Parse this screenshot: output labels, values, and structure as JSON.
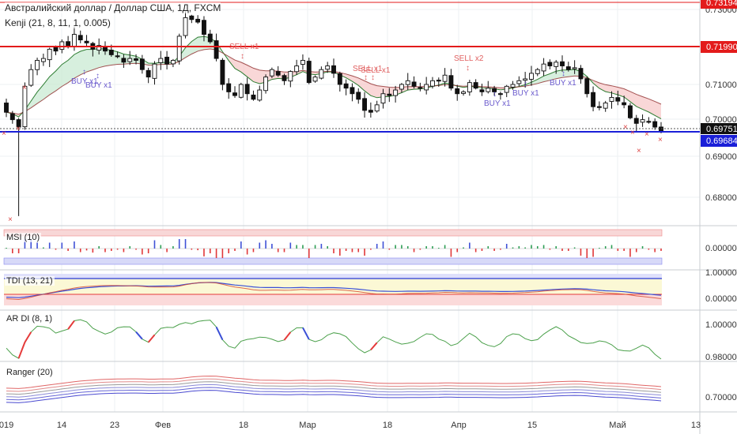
{
  "header": {
    "title": "Австралийский доллар / Доллар США, 1Д, FXCM",
    "indicator": "Kenji (21, 8, 11, 1, 0.005)"
  },
  "panels": {
    "msi": "MSI (10)",
    "tdi": "TDI (13, 21)",
    "ardi": "AR DI (8, 1)",
    "ranger": "Ranger (20)"
  },
  "price_axis": {
    "ticks": [
      "0.73000",
      "0.71000",
      "0.70000",
      "0.69000",
      "0.68000"
    ],
    "top_label": "0.73194",
    "resistance_label": "0.71990",
    "last_label": "0.69751",
    "support_label": "0.69684",
    "colors": {
      "resistance": "#e31b1b",
      "support": "#1a1fd8",
      "last": "#111111"
    }
  },
  "msi_axis": [
    "0.00000"
  ],
  "tdi_axis": [
    "1.00000",
    "0.00000"
  ],
  "ardi_axis": [
    "1.00000",
    "0.98000"
  ],
  "ranger_axis": [
    "0.70000"
  ],
  "time_axis": [
    {
      "label": "019",
      "x": 8
    },
    {
      "label": "14",
      "x": 78
    },
    {
      "label": "23",
      "x": 145
    },
    {
      "label": "Фев",
      "x": 206
    },
    {
      "label": "18",
      "x": 308
    },
    {
      "label": "Мар",
      "x": 389
    },
    {
      "label": "18",
      "x": 490
    },
    {
      "label": "Апр",
      "x": 580
    },
    {
      "label": "15",
      "x": 673
    },
    {
      "label": "Май",
      "x": 781
    },
    {
      "label": "13",
      "x": 880
    }
  ],
  "signals": [
    {
      "text": "BUY x1",
      "type": "buy"
    },
    {
      "text": "BUY x1",
      "type": "buy"
    },
    {
      "text": "SELL x1",
      "type": "sell"
    },
    {
      "text": "SELL x1",
      "type": "sell"
    },
    {
      "text": "SELL x1",
      "type": "sell"
    },
    {
      "text": "SELL x2",
      "type": "sell"
    },
    {
      "text": "BUY x1",
      "type": "buy"
    },
    {
      "text": "BUY x1",
      "type": "buy"
    },
    {
      "text": "BUY x1",
      "type": "buy"
    }
  ],
  "chart_data": {
    "type": "candlestick",
    "symbol": "AUD/USD",
    "closes": [
      0.7025,
      0.7005,
      0.6985,
      0.7095,
      0.714,
      0.7165,
      0.717,
      0.7195,
      0.719,
      0.7215,
      0.7205,
      0.7235,
      0.722,
      0.7212,
      0.7195,
      0.7205,
      0.719,
      0.718,
      0.7175,
      0.716,
      0.717,
      0.7165,
      0.714,
      0.712,
      0.7155,
      0.717,
      0.7155,
      0.7165,
      0.723,
      0.728,
      0.7275,
      0.7268,
      0.7235,
      0.7215,
      0.717,
      0.71,
      0.708,
      0.707,
      0.71,
      0.7075,
      0.706,
      0.7085,
      0.712,
      0.714,
      0.7125,
      0.711,
      0.7135,
      0.715,
      0.7165,
      0.7105,
      0.712,
      0.714,
      0.715,
      0.713,
      0.71,
      0.709,
      0.7075,
      0.706,
      0.703,
      0.7025,
      0.7045,
      0.7075,
      0.707,
      0.7085,
      0.71,
      0.711,
      0.7095,
      0.709,
      0.71,
      0.711,
      0.711,
      0.7125,
      0.709,
      0.7075,
      0.708,
      0.7105,
      0.709,
      0.708,
      0.709,
      0.708,
      0.7075,
      0.7095,
      0.71,
      0.711,
      0.7115,
      0.713,
      0.714,
      0.7155,
      0.715,
      0.716,
      0.715,
      0.714,
      0.7145,
      0.7115,
      0.7075,
      0.704,
      0.704,
      0.705,
      0.7065,
      0.7055,
      0.7045,
      0.701,
      0.6995,
      0.7005,
      0.7,
      0.6985,
      0.6975
    ]
  }
}
